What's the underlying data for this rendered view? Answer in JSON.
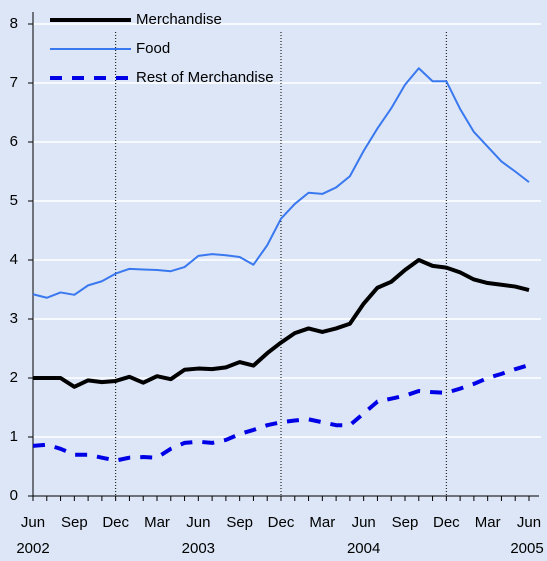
{
  "chart_data": {
    "type": "line",
    "categories": [
      "Jun",
      null,
      null,
      "Sep",
      null,
      null,
      "Dec",
      null,
      null,
      "Mar",
      null,
      null,
      "Jun",
      null,
      null,
      "Sep",
      null,
      null,
      "Dec",
      null,
      null,
      "Mar",
      null,
      null,
      "Jun",
      null,
      null,
      "Sep",
      null,
      null,
      "Dec",
      null,
      null,
      "Mar",
      null,
      null,
      "Jun"
    ],
    "year_labels": [
      "2002",
      null,
      null,
      null,
      null,
      null,
      null,
      null,
      null,
      null,
      null,
      null,
      "2003",
      null,
      null,
      null,
      null,
      null,
      null,
      null,
      null,
      null,
      null,
      null,
      "2004",
      null,
      null,
      null,
      null,
      null,
      null,
      null,
      null,
      null,
      null,
      null,
      "2005"
    ],
    "vertical_line_categories": [
      6,
      18,
      30
    ],
    "series": [
      {
        "name": "Merchandise",
        "color": "#000000",
        "style": "solid",
        "width": 4,
        "values": [
          2.0,
          2.0,
          2.0,
          1.85,
          1.96,
          1.93,
          1.95,
          2.02,
          1.92,
          2.03,
          1.98,
          2.14,
          2.16,
          2.15,
          2.18,
          2.27,
          2.21,
          2.42,
          2.6,
          2.76,
          2.84,
          2.78,
          2.84,
          2.92,
          3.26,
          3.53,
          3.63,
          3.83,
          4.0,
          3.9,
          3.87,
          3.79,
          3.67,
          3.61,
          3.58,
          3.55,
          3.49
        ]
      },
      {
        "name": "Food",
        "color": "#3a78f0",
        "style": "solid",
        "width": 2,
        "values": [
          3.42,
          3.36,
          3.45,
          3.41,
          3.57,
          3.64,
          3.77,
          3.85,
          3.84,
          3.83,
          3.81,
          3.88,
          4.07,
          4.1,
          4.08,
          4.05,
          3.92,
          4.25,
          4.7,
          4.95,
          5.14,
          5.12,
          5.23,
          5.42,
          5.85,
          6.23,
          6.57,
          6.97,
          7.25,
          7.03,
          7.03,
          6.56,
          6.17,
          5.92,
          5.67,
          5.5,
          5.32
        ]
      },
      {
        "name": "Rest of Merchandise",
        "color": "#0000e6",
        "style": "dashed",
        "width": 4,
        "values": [
          0.85,
          0.87,
          0.8,
          0.7,
          0.7,
          0.65,
          0.6,
          0.65,
          0.66,
          0.65,
          0.8,
          0.9,
          0.92,
          0.9,
          0.95,
          1.05,
          1.12,
          1.2,
          1.25,
          1.28,
          1.3,
          1.25,
          1.2,
          1.2,
          1.4,
          1.6,
          1.65,
          1.7,
          1.78,
          1.76,
          1.75,
          1.82,
          1.9,
          2.0,
          2.07,
          2.15,
          2.22
        ]
      }
    ],
    "ylim": [
      0,
      8
    ],
    "yticks": [
      0,
      1,
      2,
      3,
      4,
      5,
      6,
      7,
      8
    ],
    "grid": true
  }
}
